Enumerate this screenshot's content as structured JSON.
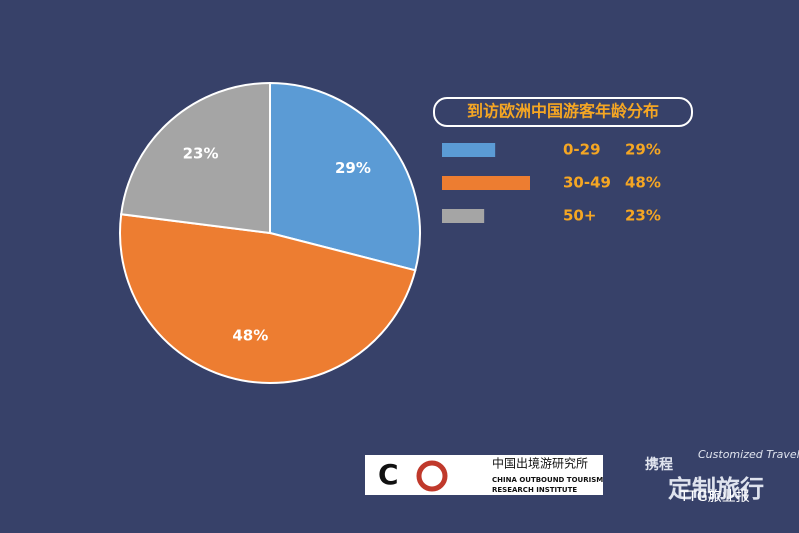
{
  "chart_data": {
    "type": "pie",
    "title": "到访欧洲中国游客年龄分布",
    "categories": [
      "0-29",
      "30-49",
      "50+"
    ],
    "values": [
      29,
      48,
      23
    ],
    "value_labels": [
      "29%",
      "48%",
      "23%"
    ],
    "colors": [
      "#5b9bd5",
      "#ed7d31",
      "#a5a5a5"
    ],
    "legend": "right"
  },
  "logos": {
    "cotri_cn": "中国出境游研究所",
    "cotri_en1": "CHINA OUTBOUND TOURISM",
    "cotri_en2": "RESEARCH INSTITUTE",
    "ctrip_cn1": "携程",
    "ctrip_cn2": "定制旅行",
    "ctrip_en": "Customized Travel",
    "account": "TTG旅业报"
  }
}
